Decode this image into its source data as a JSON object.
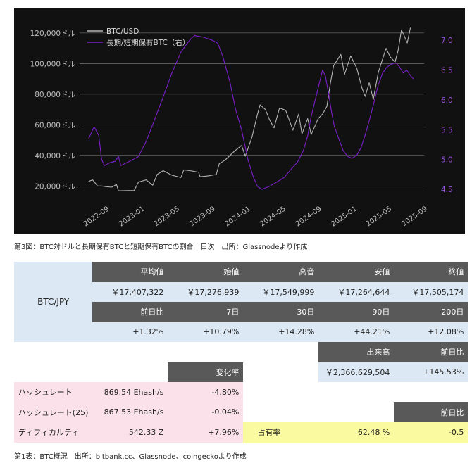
{
  "chart_data": {
    "type": "line",
    "legend": {
      "position": "top-left",
      "entries": [
        "BTC/USD",
        "長期/短期保有BTC（右）"
      ]
    },
    "colors": {
      "btc_usd": "#b4b4b4",
      "ratio": "#7a1fc8",
      "background": "#111111"
    },
    "y_left": {
      "min": 10000,
      "max": 125000,
      "ticks": [
        20000,
        40000,
        60000,
        80000,
        100000,
        120000
      ],
      "tick_labels": [
        "20,000ドル",
        "40,000ドル",
        "60,000ドル",
        "80,000ドル",
        "100,000ドル",
        "120,000ドル"
      ]
    },
    "y_right": {
      "min": 4.3,
      "max": 7.25,
      "ticks": [
        4.5,
        5.0,
        5.5,
        6.0,
        6.5,
        7.0
      ],
      "tick_labels": [
        "4.5",
        "5.0",
        "5.5",
        "6.0",
        "6.5",
        "7.0"
      ]
    },
    "x_range": [
      "2022-07-01",
      "2025-09-30"
    ],
    "x_ticks": [
      "2022-09",
      "2023-01",
      "2023-05",
      "2023-09",
      "2024-01",
      "2024-05",
      "2024-09",
      "2025-01",
      "2025-05",
      "2025-09"
    ],
    "gridlines": "horizontal, left axis",
    "series": [
      {
        "name": "BTC/USD",
        "axis": "left",
        "points": [
          [
            "2022-08-01",
            23000
          ],
          [
            "2022-08-15",
            24000
          ],
          [
            "2022-09-01",
            20000
          ],
          [
            "2022-09-15",
            20000
          ],
          [
            "2022-10-01",
            19500
          ],
          [
            "2022-10-20",
            19200
          ],
          [
            "2022-11-05",
            21000
          ],
          [
            "2022-11-12",
            16800
          ],
          [
            "2022-12-15",
            17000
          ],
          [
            "2023-01-05",
            17000
          ],
          [
            "2023-01-20",
            22500
          ],
          [
            "2023-02-15",
            24000
          ],
          [
            "2023-03-10",
            20500
          ],
          [
            "2023-03-25",
            27500
          ],
          [
            "2023-04-15",
            30000
          ],
          [
            "2023-05-15",
            27000
          ],
          [
            "2023-06-15",
            25500
          ],
          [
            "2023-06-25",
            30500
          ],
          [
            "2023-07-15",
            30000
          ],
          [
            "2023-08-15",
            29000
          ],
          [
            "2023-08-20",
            26000
          ],
          [
            "2023-09-15",
            26500
          ],
          [
            "2023-10-15",
            27500
          ],
          [
            "2023-10-25",
            34500
          ],
          [
            "2023-11-15",
            37000
          ],
          [
            "2023-12-15",
            42500
          ],
          [
            "2024-01-10",
            46500
          ],
          [
            "2024-01-23",
            39500
          ],
          [
            "2024-02-15",
            52000
          ],
          [
            "2024-03-05",
            67000
          ],
          [
            "2024-03-14",
            73000
          ],
          [
            "2024-04-01",
            70000
          ],
          [
            "2024-04-15",
            63500
          ],
          [
            "2024-05-01",
            58000
          ],
          [
            "2024-05-20",
            71000
          ],
          [
            "2024-06-10",
            69500
          ],
          [
            "2024-07-05",
            56500
          ],
          [
            "2024-07-25",
            67000
          ],
          [
            "2024-08-05",
            54000
          ],
          [
            "2024-08-25",
            64000
          ],
          [
            "2024-09-06",
            53500
          ],
          [
            "2024-09-30",
            64000
          ],
          [
            "2024-10-15",
            67000
          ],
          [
            "2024-10-30",
            72000
          ],
          [
            "2024-11-12",
            88000
          ],
          [
            "2024-11-22",
            98500
          ],
          [
            "2024-12-17",
            106000
          ],
          [
            "2024-12-30",
            93000
          ],
          [
            "2025-01-20",
            105000
          ],
          [
            "2025-02-10",
            97000
          ],
          [
            "2025-02-28",
            84000
          ],
          [
            "2025-03-11",
            78500
          ],
          [
            "2025-03-25",
            87500
          ],
          [
            "2025-04-08",
            76500
          ],
          [
            "2025-04-25",
            94000
          ],
          [
            "2025-05-10",
            103000
          ],
          [
            "2025-05-22",
            110000
          ],
          [
            "2025-06-05",
            104500
          ],
          [
            "2025-06-22",
            101000
          ],
          [
            "2025-07-03",
            109000
          ],
          [
            "2025-07-14",
            122000
          ],
          [
            "2025-07-25",
            117500
          ],
          [
            "2025-08-03",
            113500
          ],
          [
            "2025-08-14",
            123500
          ]
        ]
      },
      {
        "name": "長期/短期保有BTC（右）",
        "axis": "right",
        "points": [
          [
            "2022-08-01",
            5.35
          ],
          [
            "2022-08-20",
            5.55
          ],
          [
            "2022-09-05",
            5.4
          ],
          [
            "2022-09-15",
            5.0
          ],
          [
            "2022-09-25",
            4.9
          ],
          [
            "2022-10-15",
            4.95
          ],
          [
            "2022-11-01",
            4.97
          ],
          [
            "2022-11-12",
            5.05
          ],
          [
            "2022-11-20",
            4.9
          ],
          [
            "2022-12-20",
            4.97
          ],
          [
            "2023-01-20",
            5.05
          ],
          [
            "2023-02-15",
            5.3
          ],
          [
            "2023-03-15",
            5.65
          ],
          [
            "2023-04-15",
            6.05
          ],
          [
            "2023-05-15",
            6.45
          ],
          [
            "2023-06-15",
            6.8
          ],
          [
            "2023-07-15",
            7.0
          ],
          [
            "2023-08-01",
            7.08
          ],
          [
            "2023-09-01",
            7.05
          ],
          [
            "2023-10-01",
            7.0
          ],
          [
            "2023-10-20",
            6.95
          ],
          [
            "2023-11-05",
            6.75
          ],
          [
            "2023-12-01",
            6.3
          ],
          [
            "2023-12-20",
            5.85
          ],
          [
            "2024-01-10",
            5.5
          ],
          [
            "2024-02-01",
            5.0
          ],
          [
            "2024-02-20",
            4.7
          ],
          [
            "2024-03-05",
            4.55
          ],
          [
            "2024-03-20",
            4.5
          ],
          [
            "2024-04-15",
            4.55
          ],
          [
            "2024-05-10",
            4.62
          ],
          [
            "2024-06-05",
            4.7
          ],
          [
            "2024-07-01",
            4.85
          ],
          [
            "2024-07-20",
            4.95
          ],
          [
            "2024-08-10",
            5.15
          ],
          [
            "2024-08-25",
            5.4
          ],
          [
            "2024-09-05",
            5.7
          ],
          [
            "2024-09-20",
            6.0
          ],
          [
            "2024-10-05",
            6.3
          ],
          [
            "2024-10-15",
            6.5
          ],
          [
            "2024-10-25",
            6.4
          ],
          [
            "2024-11-05",
            6.1
          ],
          [
            "2024-11-15",
            5.8
          ],
          [
            "2024-11-25",
            5.55
          ],
          [
            "2024-12-10",
            5.35
          ],
          [
            "2024-12-25",
            5.15
          ],
          [
            "2025-01-10",
            5.05
          ],
          [
            "2025-01-25",
            5.02
          ],
          [
            "2025-02-10",
            5.07
          ],
          [
            "2025-02-25",
            5.2
          ],
          [
            "2025-03-10",
            5.4
          ],
          [
            "2025-03-25",
            5.65
          ],
          [
            "2025-04-10",
            5.95
          ],
          [
            "2025-04-25",
            6.25
          ],
          [
            "2025-05-10",
            6.45
          ],
          [
            "2025-05-25",
            6.55
          ],
          [
            "2025-06-10",
            6.6
          ],
          [
            "2025-06-25",
            6.62
          ],
          [
            "2025-07-08",
            6.55
          ],
          [
            "2025-07-20",
            6.45
          ],
          [
            "2025-08-01",
            6.5
          ],
          [
            "2025-08-15",
            6.4
          ],
          [
            "2025-08-25",
            6.35
          ]
        ]
      }
    ]
  },
  "captions": {
    "chart": "第3図：BTC対ドルと長期保有BTCと短期保有BTCの割合　日次　出所：Glassnodeより作成",
    "table": "第1表：BTC概況　出所：bitbank.cc、Glassnode、coingeckoより作成"
  },
  "table": {
    "pair_label": "BTC/JPY",
    "price_headers": [
      "平均値",
      "始値",
      "高音",
      "安値",
      "終値"
    ],
    "price_values": [
      "￥17,407,322",
      "￥17,276,939",
      "￥17,549,999",
      "￥17,264,644",
      "￥17,505,174"
    ],
    "change_headers": [
      "前日比",
      "7日",
      "30日",
      "90日",
      "200日"
    ],
    "change_values": [
      "+1.32%",
      "+10.79%",
      "+14.28%",
      "+44.21%",
      "+12.08%"
    ],
    "volume_header": "出来高",
    "volume_change_header": "前日比",
    "volume_value": "￥2,366,629,504",
    "volume_change_value": "+145.53%",
    "change_rate_header": "変化率",
    "metrics": [
      {
        "label": "ハッシュレート",
        "value": "869.54 Ehash/s",
        "change": "-4.80%"
      },
      {
        "label": "ハッシュレート(25)",
        "value": "867.53 Ehash/s",
        "change": "-0.04%"
      },
      {
        "label": "ディフィカルティ",
        "value": "542.33 Z",
        "change": "+7.96%"
      }
    ],
    "share_change_header": "前日比",
    "share_label": "占有率",
    "share_value": "62.48 %",
    "share_change": "-0.5"
  }
}
